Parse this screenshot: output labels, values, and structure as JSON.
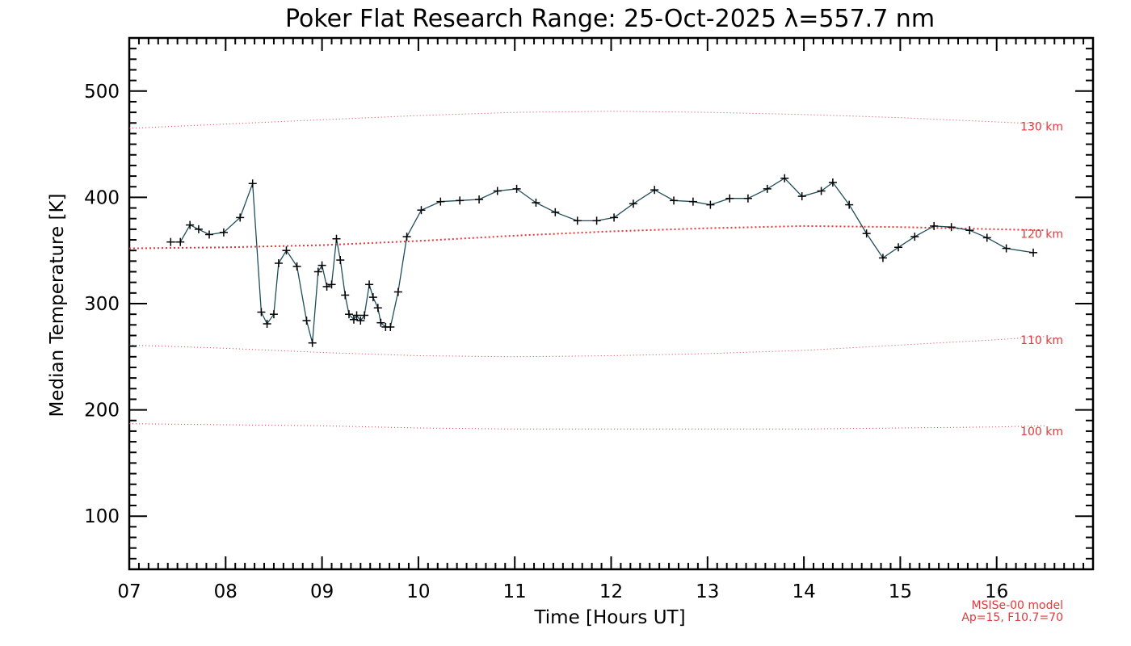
{
  "chart_data": {
    "type": "line",
    "title": "Poker Flat Research Range: 25-Oct-2025 λ=557.7 nm",
    "xlabel": "Time [Hours UT]",
    "ylabel": "Median Temperature [K]",
    "xlim": [
      7,
      17
    ],
    "ylim": [
      50,
      550
    ],
    "x_ticks": [
      7,
      8,
      9,
      10,
      11,
      12,
      13,
      14,
      15,
      16
    ],
    "x_tick_labels": [
      "07",
      "08",
      "09",
      "10",
      "11",
      "12",
      "13",
      "14",
      "15",
      "16"
    ],
    "y_ticks": [
      100,
      200,
      300,
      400,
      500
    ],
    "y_tick_labels": [
      "100",
      "200",
      "300",
      "400",
      "500"
    ],
    "series": [
      {
        "name": "Median Temperature",
        "color": "#1f4e5a",
        "marker": "+",
        "x": [
          7.43,
          7.53,
          7.63,
          7.72,
          7.83,
          7.98,
          8.15,
          8.28,
          8.37,
          8.43,
          8.5,
          8.55,
          8.63,
          8.74,
          8.84,
          8.9,
          8.96,
          9.0,
          9.05,
          9.1,
          9.15,
          9.19,
          9.24,
          9.28,
          9.33,
          9.36,
          9.4,
          9.44,
          9.49,
          9.53,
          9.58,
          9.61,
          9.66,
          9.71,
          9.79,
          9.88,
          10.03,
          10.23,
          10.43,
          10.63,
          10.82,
          11.02,
          11.22,
          11.42,
          11.65,
          11.85,
          12.03,
          12.23,
          12.45,
          12.65,
          12.85,
          13.03,
          13.23,
          13.42,
          13.62,
          13.8,
          13.98,
          14.18,
          14.3,
          14.47,
          14.65,
          14.82,
          14.98,
          15.15,
          15.35,
          15.53,
          15.72,
          15.9,
          16.1,
          16.38
        ],
        "y": [
          358,
          358,
          374,
          370,
          365,
          367,
          381,
          413,
          292,
          281,
          290,
          338,
          350,
          335,
          284,
          263,
          330,
          336,
          316,
          318,
          361,
          341,
          308,
          290,
          285,
          289,
          284,
          289,
          318,
          306,
          296,
          282,
          278,
          278,
          311,
          363,
          388,
          396,
          397,
          398,
          406,
          408,
          395,
          386,
          378,
          378,
          381,
          394,
          407,
          397,
          396,
          393,
          399,
          399,
          408,
          418,
          401,
          406,
          414,
          393,
          366,
          343,
          353,
          363,
          373,
          372,
          369,
          362,
          352,
          348
        ]
      },
      {
        "name": "130 km",
        "color": "#e8363a",
        "style": "dotted",
        "x": [
          7.0,
          8.0,
          9.0,
          10.0,
          11.0,
          12.0,
          13.0,
          14.0,
          15.0,
          16.0,
          16.5
        ],
        "y": [
          465,
          469,
          473,
          477,
          480,
          481,
          480,
          478,
          475,
          471,
          469
        ]
      },
      {
        "name": "120 km",
        "color": "#e8363a",
        "style": "dotted",
        "x": [
          7.0,
          8.0,
          9.0,
          10.0,
          11.0,
          12.0,
          13.0,
          14.0,
          15.0,
          16.0,
          16.5
        ],
        "y": [
          352,
          353,
          355,
          359,
          364,
          368,
          371,
          373,
          372,
          370,
          369
        ]
      },
      {
        "name": "110 km",
        "color": "#e8363a",
        "style": "dotted",
        "x": [
          7.0,
          8.0,
          9.0,
          10.0,
          11.0,
          12.0,
          13.0,
          14.0,
          15.0,
          16.0,
          16.5
        ],
        "y": [
          261,
          258,
          254,
          251,
          250,
          251,
          253,
          256,
          261,
          266,
          269
        ]
      },
      {
        "name": "100 km",
        "color": "#e8363a",
        "style": "dotted",
        "x": [
          7.0,
          8.0,
          9.0,
          10.0,
          11.0,
          12.0,
          13.0,
          14.0,
          15.0,
          16.0,
          16.5
        ],
        "y": [
          187,
          186,
          185,
          183,
          182,
          182,
          182,
          182,
          183,
          184,
          185
        ]
      }
    ],
    "model_labels": [
      {
        "text": "130 km",
        "y": 463
      },
      {
        "text": "120 km",
        "y": 362
      },
      {
        "text": "110 km",
        "y": 262
      },
      {
        "text": "100 km",
        "y": 176
      }
    ],
    "model_note": [
      "MSISe-00 model",
      "Ap=15, F10.7=70"
    ]
  }
}
